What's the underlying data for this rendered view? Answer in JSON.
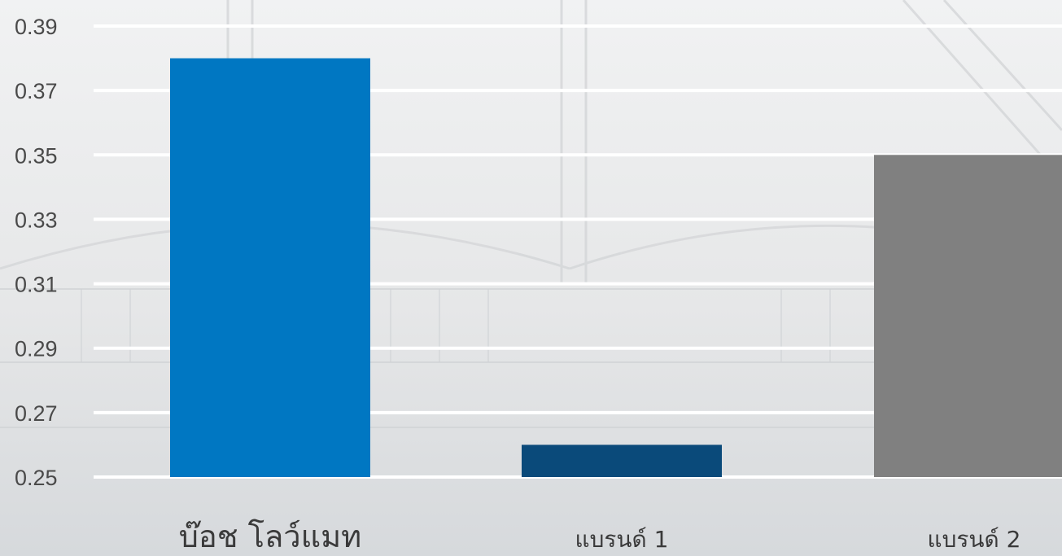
{
  "chart_data": {
    "type": "bar",
    "categories": [
      "บ๊อช โลว์แมท",
      "แบรนด์ 1",
      "แบรนด์ 2"
    ],
    "values": [
      0.38,
      0.26,
      0.35
    ],
    "colors": [
      "#0077c2",
      "#0a4a7a",
      "#808080"
    ],
    "category_label_colors": [
      "#0077c2",
      "#3a3a3a",
      "#3a3a3a"
    ],
    "yticks": [
      "0.25",
      "0.27",
      "0.29",
      "0.31",
      "0.33",
      "0.35",
      "0.37",
      "0.39"
    ],
    "ylim": [
      0.25,
      0.39
    ],
    "grid": true,
    "legend": "none",
    "gridline_color": "#ffffff"
  }
}
